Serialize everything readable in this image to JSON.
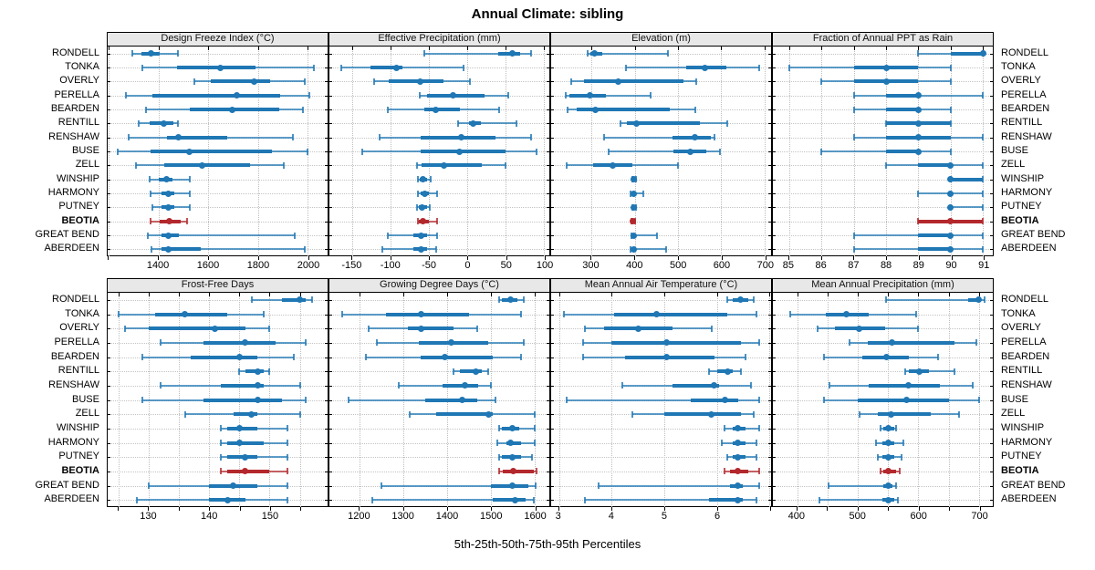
{
  "title": "Annual Climate: sibling",
  "xlabel": "5th-25th-50th-75th-95th Percentiles",
  "stations": [
    "RONDELL",
    "TONKA",
    "OVERLY",
    "PERELLA",
    "BEARDEN",
    "RENTILL",
    "RENSHAW",
    "BUSE",
    "ZELL",
    "WINSHIP",
    "HARMONY",
    "PUTNEY",
    "BEOTIA",
    "GREAT BEND",
    "ABERDEEN"
  ],
  "highlight_station": "BEOTIA",
  "colors": {
    "series_blue": "#1f77b4",
    "highlight_red": "#b3282d",
    "grid": "#bdbdbd",
    "panel_header_bg": "#e8e8e8",
    "border": "#000000"
  },
  "chart_data": {
    "type": "percentile-dotplot-trellis",
    "note": "Each row shows 5th-25th-50th-75th-95th percentiles: thin whisker with end caps = 5th-95th, thick bar = 25th-75th, dot = median. BEOTIA row highlighted red.",
    "percentiles": [
      5,
      25,
      50,
      75,
      95
    ],
    "layout": "2 rows x 4 columns, station labels on both left and right sides",
    "grid": "dotted",
    "panels": [
      {
        "title": "Design Freeze Index (°C)",
        "xlim": [
          1196,
          2080
        ],
        "ticks": [
          {
            "v": 1200,
            "label": ""
          },
          {
            "v": 1400,
            "label": "1400"
          },
          {
            "v": 1600,
            "label": "1600"
          },
          {
            "v": 1800,
            "label": "1800"
          },
          {
            "v": 2000,
            "label": "2000"
          }
        ],
        "values": [
          [
            1295,
            1330,
            1370,
            1405,
            1480
          ],
          [
            1335,
            1475,
            1650,
            1790,
            2025
          ],
          [
            1545,
            1610,
            1785,
            1850,
            1990
          ],
          [
            1270,
            1375,
            1715,
            1890,
            2005
          ],
          [
            1350,
            1525,
            1695,
            1885,
            1980
          ],
          [
            1320,
            1365,
            1420,
            1460,
            1480
          ],
          [
            1280,
            1435,
            1480,
            1675,
            1940
          ],
          [
            1236,
            1367,
            1525,
            1855,
            2000
          ],
          [
            1310,
            1425,
            1575,
            1770,
            1905
          ],
          [
            1365,
            1400,
            1432,
            1455,
            1525
          ],
          [
            1370,
            1412,
            1440,
            1465,
            1525
          ],
          [
            1375,
            1412,
            1440,
            1465,
            1525
          ],
          [
            1367,
            1406,
            1445,
            1488,
            1515
          ],
          [
            1359,
            1413,
            1440,
            1483,
            1947
          ],
          [
            1372,
            1414,
            1440,
            1570,
            1990
          ]
        ]
      },
      {
        "title": "Effective Precipitation (mm)",
        "xlim": [
          -180,
          107
        ],
        "ticks": [
          {
            "v": -150,
            "label": "-150"
          },
          {
            "v": -100,
            "label": "-100"
          },
          {
            "v": -50,
            "label": "-50"
          },
          {
            "v": 0,
            "label": "0"
          },
          {
            "v": 50,
            "label": "50"
          },
          {
            "v": 100,
            "label": "100"
          }
        ],
        "values": [
          [
            -56,
            40,
            59,
            69,
            83
          ],
          [
            -165,
            -127,
            -92,
            -85,
            -5
          ],
          [
            -122,
            -102,
            -62,
            -31,
            3
          ],
          [
            -62,
            -52,
            -19,
            22,
            54
          ],
          [
            -104,
            -56,
            -41,
            -10,
            41
          ],
          [
            -12,
            2,
            7,
            18,
            64
          ],
          [
            -115,
            -61,
            -8,
            37,
            83
          ],
          [
            -137,
            -61,
            -10,
            50,
            90
          ],
          [
            -66,
            -60,
            -30,
            19,
            50
          ],
          [
            -65,
            -62,
            -58,
            -53,
            -48
          ],
          [
            -64,
            -61,
            -56,
            -50,
            -39
          ],
          [
            -66,
            -63,
            -59,
            -53,
            -49
          ],
          [
            -65,
            -63,
            -58,
            -50,
            -39
          ],
          [
            -104,
            -71,
            -60,
            -52,
            -39
          ],
          [
            -111,
            -70,
            -60,
            -52,
            -41
          ]
        ]
      },
      {
        "title": "Elevation (m)",
        "xlim": [
          207,
          715
        ],
        "ticks": [
          {
            "v": 300,
            "label": "300"
          },
          {
            "v": 400,
            "label": "400"
          },
          {
            "v": 500,
            "label": "500"
          },
          {
            "v": 600,
            "label": "600"
          },
          {
            "v": 700,
            "label": "700"
          }
        ],
        "values": [
          [
            291,
            298,
            308,
            325,
            476
          ],
          [
            380,
            518,
            563,
            612,
            688
          ],
          [
            253,
            283,
            361,
            513,
            542
          ],
          [
            240,
            250,
            296,
            333,
            436
          ],
          [
            245,
            267,
            310,
            480,
            540
          ],
          [
            367,
            382,
            405,
            550,
            613
          ],
          [
            330,
            488,
            540,
            575,
            585
          ],
          [
            340,
            490,
            528,
            565,
            598
          ],
          [
            242,
            305,
            350,
            395,
            500
          ],
          [
            395,
            397,
            398,
            400,
            403
          ],
          [
            390,
            395,
            398,
            401,
            420
          ],
          [
            394,
            396,
            398,
            400,
            403
          ],
          [
            392,
            394,
            396,
            398,
            400
          ],
          [
            392,
            395,
            398,
            401,
            452
          ],
          [
            390,
            395,
            398,
            402,
            473
          ]
        ]
      },
      {
        "title": "Fraction of Annual PPT as Rain",
        "xlim": [
          84.5,
          91.3
        ],
        "ticks": [
          {
            "v": 85,
            "label": "85"
          },
          {
            "v": 86,
            "label": "86"
          },
          {
            "v": 87,
            "label": "87"
          },
          {
            "v": 88,
            "label": "88"
          },
          {
            "v": 89,
            "label": "89"
          },
          {
            "v": 90,
            "label": "90"
          },
          {
            "v": 91,
            "label": "91"
          }
        ],
        "values": [
          [
            89,
            90,
            91,
            91,
            91
          ],
          [
            85,
            87,
            88,
            89,
            90
          ],
          [
            86,
            87,
            88,
            89,
            90
          ],
          [
            87,
            88,
            89,
            89,
            91
          ],
          [
            87,
            88,
            89,
            89,
            90
          ],
          [
            88,
            88,
            89,
            90,
            90
          ],
          [
            87,
            88,
            89,
            90,
            91
          ],
          [
            86,
            88,
            89,
            89,
            90
          ],
          [
            88,
            89,
            90,
            90,
            91
          ],
          [
            90,
            90,
            90,
            91,
            91
          ],
          [
            89,
            90,
            90,
            90,
            91
          ],
          [
            90,
            90,
            90,
            90,
            91
          ],
          [
            89,
            89,
            90,
            91,
            91
          ],
          [
            87,
            89,
            90,
            90,
            91
          ],
          [
            87,
            89,
            90,
            90,
            91
          ]
        ]
      },
      {
        "title": "Frost-Free Days",
        "xlim": [
          123.2,
          159.6
        ],
        "ticks": [
          {
            "v": 125,
            "label": ""
          },
          {
            "v": 130,
            "label": "130"
          },
          {
            "v": 135,
            "label": ""
          },
          {
            "v": 140,
            "label": "140"
          },
          {
            "v": 145,
            "label": ""
          },
          {
            "v": 150,
            "label": "150"
          },
          {
            "v": 155,
            "label": ""
          }
        ],
        "values": [
          [
            147,
            152,
            155,
            156,
            157
          ],
          [
            125,
            131,
            136,
            143,
            149
          ],
          [
            126,
            130,
            141,
            146,
            150
          ],
          [
            132,
            139,
            146,
            151,
            156
          ],
          [
            129,
            137,
            145,
            148,
            154
          ],
          [
            145,
            146,
            148,
            149,
            150
          ],
          [
            132,
            142,
            148,
            149,
            155
          ],
          [
            129,
            139,
            148,
            152,
            156
          ],
          [
            136,
            144,
            147,
            148,
            155
          ],
          [
            142,
            143,
            145,
            148,
            153
          ],
          [
            142,
            143,
            145,
            149,
            153
          ],
          [
            142,
            143,
            146,
            148,
            153
          ],
          [
            142,
            143,
            146,
            150,
            153
          ],
          [
            130,
            140,
            144,
            148,
            153
          ],
          [
            128,
            140,
            143,
            146,
            153
          ]
        ]
      },
      {
        "title": "Growing Degree Days (°C)",
        "xlim": [
          1131,
          1634
        ],
        "ticks": [
          {
            "v": 1200,
            "label": "1200"
          },
          {
            "v": 1300,
            "label": "1300"
          },
          {
            "v": 1400,
            "label": "1400"
          },
          {
            "v": 1500,
            "label": "1500"
          },
          {
            "v": 1600,
            "label": "1600"
          }
        ],
        "values": [
          [
            1520,
            1525,
            1545,
            1560,
            1575
          ],
          [
            1160,
            1260,
            1340,
            1450,
            1570
          ],
          [
            1220,
            1310,
            1340,
            1415,
            1470
          ],
          [
            1240,
            1335,
            1410,
            1495,
            1575
          ],
          [
            1215,
            1340,
            1395,
            1505,
            1570
          ],
          [
            1415,
            1430,
            1465,
            1480,
            1495
          ],
          [
            1290,
            1390,
            1440,
            1472,
            1500
          ],
          [
            1175,
            1350,
            1435,
            1470,
            1510
          ],
          [
            1315,
            1375,
            1495,
            1505,
            1600
          ],
          [
            1520,
            1525,
            1550,
            1565,
            1600
          ],
          [
            1515,
            1535,
            1545,
            1570,
            1600
          ],
          [
            1520,
            1525,
            1550,
            1570,
            1595
          ],
          [
            1520,
            1527,
            1552,
            1598,
            1605
          ],
          [
            1250,
            1500,
            1550,
            1585,
            1603
          ],
          [
            1230,
            1505,
            1555,
            1580,
            1598
          ]
        ]
      },
      {
        "title": "Mean Annual Air Temperature (°C)",
        "xlim": [
          2.85,
          7.03
        ],
        "ticks": [
          {
            "v": 3,
            "label": "3"
          },
          {
            "v": 4,
            "label": "4"
          },
          {
            "v": 5,
            "label": "5"
          },
          {
            "v": 6,
            "label": "6"
          },
          {
            "v": 7,
            "label": ""
          }
        ],
        "values": [
          [
            6.2,
            6.3,
            6.45,
            6.6,
            6.7
          ],
          [
            3.1,
            4.05,
            4.85,
            6.2,
            6.75
          ],
          [
            3.5,
            3.85,
            4.5,
            5.15,
            5.9
          ],
          [
            3.45,
            4.0,
            5.05,
            6.45,
            6.8
          ],
          [
            3.45,
            4.25,
            5.05,
            5.95,
            6.55
          ],
          [
            5.85,
            6.0,
            6.2,
            6.3,
            6.45
          ],
          [
            4.2,
            5.15,
            5.95,
            6.05,
            6.65
          ],
          [
            3.15,
            5.5,
            6.15,
            6.4,
            6.8
          ],
          [
            4.4,
            5.0,
            5.9,
            6.45,
            6.7
          ],
          [
            6.15,
            6.3,
            6.4,
            6.55,
            6.8
          ],
          [
            6.1,
            6.3,
            6.4,
            6.55,
            6.75
          ],
          [
            6.2,
            6.3,
            6.4,
            6.55,
            6.75
          ],
          [
            6.15,
            6.25,
            6.4,
            6.6,
            6.8
          ],
          [
            3.75,
            6.25,
            6.4,
            6.5,
            6.8
          ],
          [
            3.5,
            5.85,
            6.4,
            6.5,
            6.75
          ]
        ]
      },
      {
        "title": "Mean Annual Precipitation (mm)",
        "xlim": [
          360,
          723
        ],
        "ticks": [
          {
            "v": 400,
            "label": "400"
          },
          {
            "v": 450,
            "label": ""
          },
          {
            "v": 500,
            "label": "500"
          },
          {
            "v": 550,
            "label": ""
          },
          {
            "v": 600,
            "label": "600"
          },
          {
            "v": 650,
            "label": ""
          },
          {
            "v": 700,
            "label": "700"
          }
        ],
        "values": [
          [
            547,
            682,
            700,
            704,
            709
          ],
          [
            389,
            447,
            481,
            518,
            596
          ],
          [
            434,
            462,
            503,
            545,
            600
          ],
          [
            486,
            517,
            556,
            660,
            696
          ],
          [
            445,
            508,
            547,
            584,
            633
          ],
          [
            579,
            584,
            601,
            618,
            660
          ],
          [
            453,
            518,
            584,
            635,
            690
          ],
          [
            445,
            500,
            580,
            650,
            700
          ],
          [
            503,
            533,
            555,
            620,
            667
          ],
          [
            538,
            542,
            550,
            560,
            564
          ],
          [
            530,
            541,
            551,
            561,
            575
          ],
          [
            533,
            541,
            551,
            560,
            572
          ],
          [
            538,
            543,
            551,
            563,
            570
          ],
          [
            452,
            542,
            551,
            558,
            564
          ],
          [
            437,
            541,
            550,
            560,
            567
          ]
        ]
      }
    ]
  }
}
